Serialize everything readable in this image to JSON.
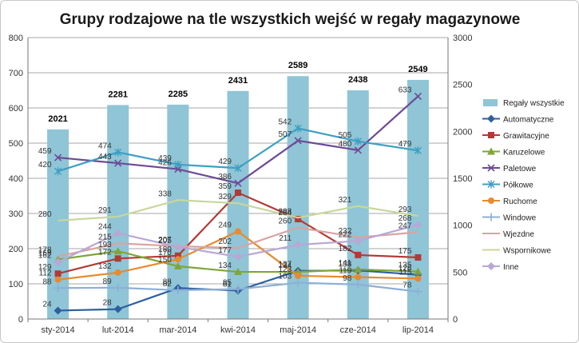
{
  "chart_data": {
    "type": "bar+line",
    "title": "Grupy rodzajowe na tle wszystkich wejść w regały magazynowe",
    "categories": [
      "sty-2014",
      "lut-2014",
      "mar-2014",
      "kwi-2014",
      "maj-2014",
      "cze-2014",
      "lip-2014"
    ],
    "y_left": {
      "min": 0,
      "max": 800,
      "step": 100,
      "ticks": [
        "0",
        "100",
        "200",
        "300",
        "400",
        "500",
        "600",
        "700",
        "800"
      ]
    },
    "y_right": {
      "min": 0,
      "max": 3000,
      "step": 500,
      "ticks": [
        "0",
        "500",
        "1000",
        "1500",
        "2000",
        "2500",
        "3000"
      ]
    },
    "gridlines": true,
    "legend_position": "right",
    "bars": {
      "name": "Regały wszystkie",
      "axis": "right",
      "color": "#8fc5d6",
      "values": [
        2021,
        2281,
        2285,
        2431,
        2589,
        2438,
        2549
      ],
      "labels": [
        "2021",
        "2281",
        "2285",
        "2431",
        "2589",
        "2438",
        "2549"
      ]
    },
    "series": [
      {
        "name": "Automatyczne",
        "color": "#2e5f9e",
        "marker": "diamond",
        "values": [
          24,
          28,
          88,
          81,
          137,
          138,
          126
        ],
        "labels": [
          "24",
          "28",
          "88",
          "81",
          "137",
          "138",
          "126"
        ]
      },
      {
        "name": "Grawitacyjne",
        "color": "#b23a36",
        "marker": "square",
        "values": [
          129,
          172,
          180,
          359,
          284,
          182,
          175
        ],
        "labels": [
          "129",
          "172",
          "180",
          "359",
          "284",
          "182",
          "175"
        ]
      },
      {
        "name": "Karuzelowe",
        "color": "#7fa637",
        "marker": "triangle",
        "values": [
          169,
          193,
          150,
          134,
          134,
          141,
          135
        ],
        "labels": [
          "169",
          "193",
          "150",
          "134",
          "134",
          "141",
          "135"
        ]
      },
      {
        "name": "Paletowe",
        "color": "#6d4a96",
        "marker": "x",
        "values": [
          459,
          443,
          426,
          386,
          507,
          480,
          633
        ],
        "labels": [
          "459",
          "443",
          "426",
          "386",
          "507",
          "480",
          "633"
        ]
      },
      {
        "name": "Półkowe",
        "color": "#3d9fc2",
        "marker": "star",
        "values": [
          420,
          474,
          439,
          429,
          542,
          505,
          479
        ],
        "labels": [
          "420",
          "474",
          "439",
          "429",
          "542",
          "505",
          "479"
        ]
      },
      {
        "name": "Ruchome",
        "color": "#e88a2e",
        "marker": "circle",
        "values": [
          112,
          132,
          170,
          249,
          123,
          119,
          115
        ],
        "labels": [
          "112",
          "132",
          "170",
          "249",
          "123",
          "119",
          "115"
        ]
      },
      {
        "name": "Windowe",
        "color": "#8cb0d8",
        "marker": "plus",
        "values": [
          88,
          89,
          82,
          85,
          103,
          98,
          78
        ],
        "labels": [
          "88",
          "89",
          "82",
          "85",
          "103",
          "98",
          "78"
        ]
      },
      {
        "name": "Wjezdne",
        "color": "#d9a3a1",
        "marker": "line",
        "values": [
          178,
          215,
          207,
          202,
          260,
          232,
          247
        ],
        "labels": [
          "178",
          "215",
          "207",
          "202",
          "260",
          "232",
          "247"
        ]
      },
      {
        "name": "Wspornikowe",
        "color": "#c8d79a",
        "marker": "line",
        "values": [
          280,
          291,
          338,
          329,
          288,
          321,
          293
        ],
        "labels": [
          "280",
          "291",
          "338",
          "329",
          "288",
          "321",
          "293"
        ]
      },
      {
        "name": "Inne",
        "color": "#b9a7d6",
        "marker": "diamond",
        "values": [
          162,
          244,
          205,
          177,
          211,
          222,
          268
        ],
        "labels": [
          "162",
          "244",
          "205",
          "177",
          "211",
          "222",
          "268"
        ]
      }
    ]
  }
}
